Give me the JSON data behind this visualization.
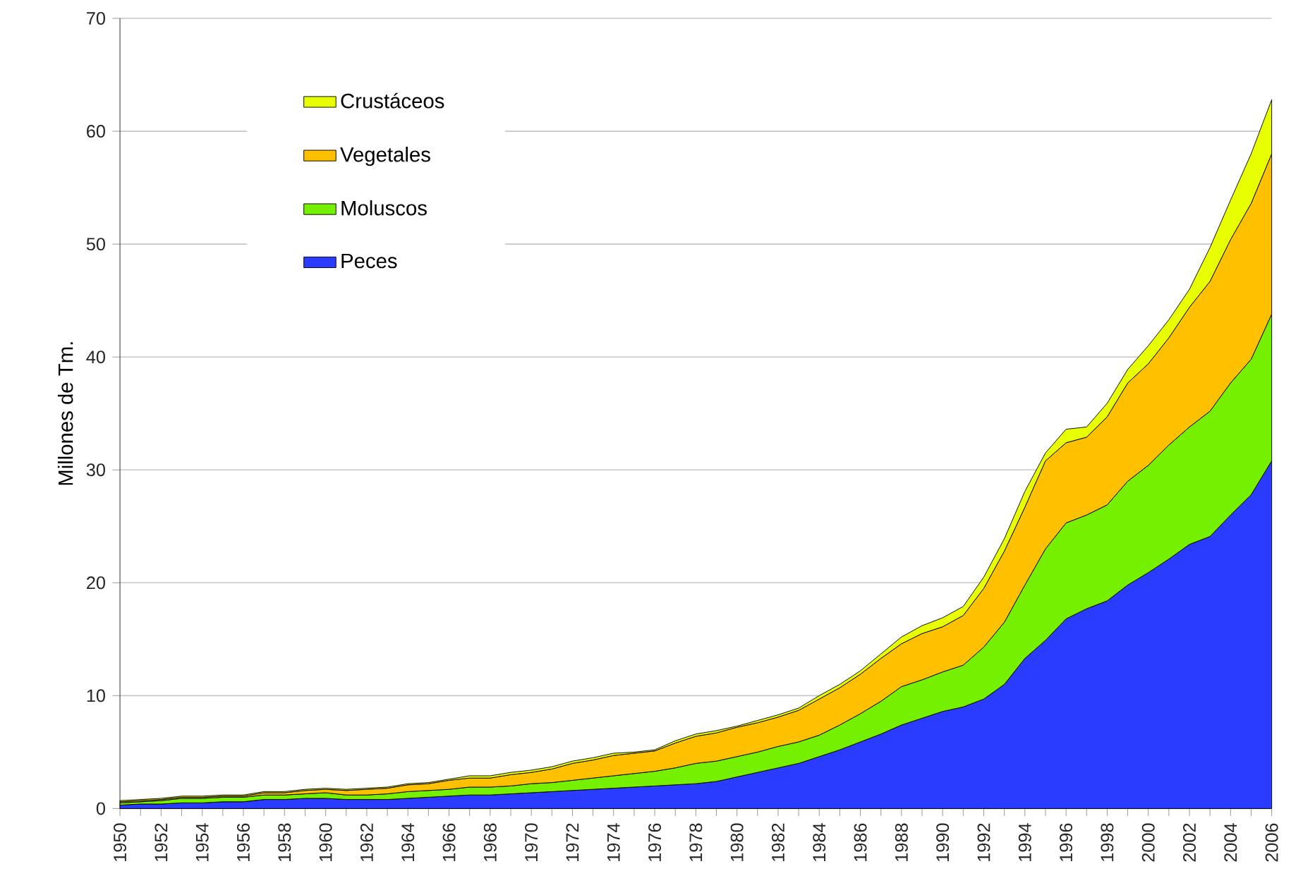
{
  "chart_data": {
    "type": "area",
    "stacked": true,
    "ylabel": "Millones de Tm.",
    "x": [
      1950,
      1951,
      1952,
      1953,
      1954,
      1955,
      1956,
      1957,
      1958,
      1959,
      1960,
      1961,
      1962,
      1963,
      1964,
      1965,
      1966,
      1967,
      1968,
      1969,
      1970,
      1971,
      1972,
      1973,
      1974,
      1975,
      1976,
      1977,
      1978,
      1979,
      1980,
      1981,
      1982,
      1983,
      1984,
      1985,
      1986,
      1987,
      1988,
      1989,
      1990,
      1991,
      1992,
      1993,
      1994,
      1995,
      1996,
      1997,
      1998,
      1999,
      2000,
      2001,
      2002,
      2003,
      2004,
      2005,
      2006
    ],
    "series": [
      {
        "name": "Peces",
        "color": "#2a3cff",
        "values": [
          0.3,
          0.4,
          0.4,
          0.5,
          0.5,
          0.6,
          0.6,
          0.8,
          0.8,
          0.9,
          0.9,
          0.8,
          0.8,
          0.8,
          0.9,
          1.0,
          1.1,
          1.2,
          1.2,
          1.3,
          1.4,
          1.5,
          1.6,
          1.7,
          1.8,
          1.9,
          2.0,
          2.1,
          2.2,
          2.4,
          2.8,
          3.2,
          3.6,
          4.0,
          4.6,
          5.2,
          5.9,
          6.6,
          7.4,
          8.0,
          8.6,
          9.0,
          9.7,
          11.0,
          13.3,
          14.9,
          16.8,
          17.7,
          18.4,
          19.8,
          20.9,
          22.1,
          23.4,
          24.1,
          26.0,
          27.8,
          30.8
        ]
      },
      {
        "name": "Moluscos",
        "color": "#74f000",
        "values": [
          0.2,
          0.2,
          0.3,
          0.4,
          0.4,
          0.4,
          0.4,
          0.4,
          0.4,
          0.4,
          0.5,
          0.4,
          0.4,
          0.5,
          0.6,
          0.6,
          0.6,
          0.7,
          0.7,
          0.7,
          0.8,
          0.8,
          0.9,
          1.0,
          1.1,
          1.2,
          1.3,
          1.5,
          1.8,
          1.8,
          1.8,
          1.8,
          1.9,
          1.9,
          1.9,
          2.2,
          2.5,
          2.9,
          3.4,
          3.4,
          3.5,
          3.7,
          4.6,
          5.5,
          6.5,
          8.1,
          8.5,
          8.3,
          8.5,
          9.2,
          9.5,
          10.1,
          10.4,
          11.1,
          11.7,
          12.0,
          13.0
        ]
      },
      {
        "name": "Vegetales",
        "color": "#ffc000",
        "values": [
          0.1,
          0.1,
          0.1,
          0.1,
          0.1,
          0.1,
          0.1,
          0.2,
          0.2,
          0.3,
          0.3,
          0.4,
          0.5,
          0.5,
          0.6,
          0.6,
          0.8,
          0.8,
          0.8,
          1.0,
          1.0,
          1.2,
          1.5,
          1.6,
          1.8,
          1.8,
          1.8,
          2.2,
          2.4,
          2.5,
          2.6,
          2.6,
          2.6,
          2.8,
          3.2,
          3.3,
          3.5,
          3.8,
          3.8,
          4.1,
          4.0,
          4.4,
          5.2,
          6.3,
          6.9,
          7.8,
          7.1,
          6.9,
          7.8,
          8.7,
          9.0,
          9.5,
          10.6,
          11.5,
          12.7,
          13.8,
          14.2
        ]
      },
      {
        "name": "Crustáceos",
        "color": "#e8ff00",
        "values": [
          0.1,
          0.1,
          0.1,
          0.1,
          0.1,
          0.1,
          0.1,
          0.1,
          0.1,
          0.1,
          0.1,
          0.1,
          0.1,
          0.1,
          0.1,
          0.1,
          0.1,
          0.2,
          0.2,
          0.2,
          0.2,
          0.2,
          0.2,
          0.2,
          0.2,
          0.1,
          0.1,
          0.2,
          0.2,
          0.2,
          0.1,
          0.2,
          0.2,
          0.2,
          0.3,
          0.3,
          0.3,
          0.4,
          0.6,
          0.7,
          0.8,
          0.8,
          1.0,
          1.1,
          1.4,
          0.7,
          1.2,
          0.9,
          1.2,
          1.2,
          1.6,
          1.6,
          1.6,
          3.0,
          3.5,
          4.4,
          4.8
        ]
      }
    ],
    "xlim": [
      1950,
      2006
    ],
    "xticks": [
      1950,
      {
        "value": 1951,
        "label": null
      },
      1952,
      {
        "value": 1953,
        "label": null
      },
      1954,
      {
        "value": 1955,
        "label": null
      },
      1956,
      {
        "value": 1957,
        "label": null
      },
      1958,
      {
        "value": 1959,
        "label": null
      },
      1960,
      {
        "value": 1961,
        "label": null
      },
      1962,
      {
        "value": 1963,
        "label": null
      },
      1964,
      {
        "value": 1965,
        "label": null
      },
      1966,
      {
        "value": 1967,
        "label": null
      },
      1968,
      {
        "value": 1969,
        "label": null
      },
      1970,
      {
        "value": 1971,
        "label": null
      },
      1972,
      {
        "value": 1973,
        "label": null
      },
      1974,
      {
        "value": 1975,
        "label": null
      },
      1976,
      {
        "value": 1977,
        "label": null
      },
      1978,
      {
        "value": 1979,
        "label": null
      },
      1980,
      {
        "value": 1981,
        "label": null
      },
      1982,
      {
        "value": 1983,
        "label": null
      },
      1984,
      {
        "value": 1985,
        "label": null
      },
      1986,
      {
        "value": 1987,
        "label": null
      },
      1988,
      {
        "value": 1989,
        "label": null
      },
      1990,
      {
        "value": 1991,
        "label": null
      },
      1992,
      {
        "value": 1993,
        "label": null
      },
      1994,
      {
        "value": 1995,
        "label": null
      },
      1996,
      {
        "value": 1997,
        "label": null
      },
      1998,
      {
        "value": 1999,
        "label": null
      },
      2000,
      {
        "value": 2001,
        "label": null
      },
      2002,
      {
        "value": 2003,
        "label": null
      },
      2004,
      {
        "value": 2005,
        "label": null
      },
      2006
    ],
    "ylim": [
      0,
      70
    ],
    "yticks": [
      0,
      10,
      20,
      30,
      40,
      50,
      60,
      70
    ],
    "grid": "y",
    "legend": "top left"
  }
}
